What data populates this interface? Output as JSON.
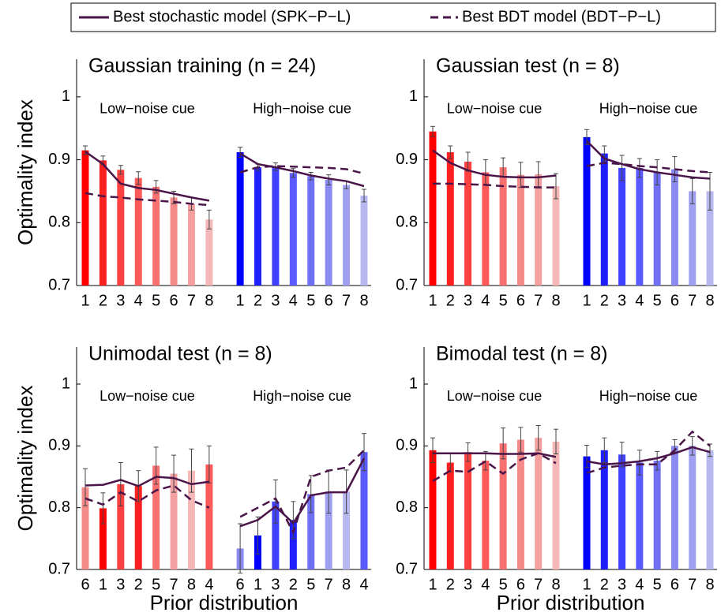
{
  "legend": {
    "position": "top",
    "items": [
      {
        "name": "Best stochastic model (SPK−P−L)",
        "color": "#4a1548",
        "dashed": false
      },
      {
        "name": "Best BDT model (BDT−P−L)",
        "color": "#4a1548",
        "dashed": true
      }
    ]
  },
  "chart_data": [
    {
      "type": "bar",
      "title": "Gaussian training (n = 24)",
      "ylabel": "Optimality index",
      "group_labels": [
        "Low−noise cue",
        "High−noise cue"
      ],
      "categories": [
        "1",
        "2",
        "3",
        "4",
        "5",
        "6",
        "7",
        "8",
        "1",
        "2",
        "3",
        "4",
        "5",
        "6",
        "7",
        "8"
      ],
      "values": [
        0.915,
        0.899,
        0.884,
        0.871,
        0.857,
        0.84,
        0.83,
        0.805,
        0.912,
        0.888,
        0.889,
        0.879,
        0.874,
        0.868,
        0.86,
        0.843
      ],
      "errors": [
        0.007,
        0.007,
        0.007,
        0.01,
        0.01,
        0.01,
        0.01,
        0.015,
        0.008,
        0.005,
        0.006,
        0.007,
        0.006,
        0.008,
        0.006,
        0.01
      ],
      "colors": [
        "#ff0000",
        "#ff2020",
        "#ff4040",
        "#ff5a5a",
        "#f87070",
        "#f58a8a",
        "#f5a0a0",
        "#f5b8b8",
        "#0000ff",
        "#2020ff",
        "#4040ff",
        "#5a5aff",
        "#7070f5",
        "#8a8af0",
        "#a0a0f0",
        "#b8b8f0"
      ],
      "series": [
        {
          "values": [
            0.913,
            0.893,
            0.862,
            0.855,
            0.852,
            0.846,
            0.84,
            0.835,
            0.91,
            0.893,
            0.888,
            0.882,
            0.875,
            0.87,
            0.866,
            0.858
          ]
        },
        {
          "values": [
            0.847,
            0.842,
            0.84,
            0.837,
            0.835,
            0.833,
            0.83,
            0.828,
            0.88,
            0.888,
            0.89,
            0.889,
            0.888,
            0.887,
            0.885,
            0.878
          ]
        }
      ],
      "ylim": [
        0.7,
        1.06
      ],
      "yticks": [
        0.7,
        0.8,
        0.9,
        1
      ]
    },
    {
      "type": "bar",
      "title": "Gaussian test (n = 8)",
      "group_labels": [
        "Low−noise cue",
        "High−noise cue"
      ],
      "categories": [
        "1",
        "2",
        "3",
        "4",
        "5",
        "6",
        "7",
        "8",
        "1",
        "2",
        "3",
        "4",
        "5",
        "6",
        "7",
        "8"
      ],
      "values": [
        0.945,
        0.912,
        0.897,
        0.88,
        0.888,
        0.876,
        0.877,
        0.858,
        0.936,
        0.91,
        0.887,
        0.887,
        0.88,
        0.885,
        0.85,
        0.85
      ],
      "errors": [
        0.008,
        0.01,
        0.015,
        0.02,
        0.015,
        0.02,
        0.02,
        0.02,
        0.012,
        0.012,
        0.02,
        0.015,
        0.02,
        0.02,
        0.02,
        0.03
      ],
      "colors": [
        "#ff0000",
        "#ff2020",
        "#ff4040",
        "#ff5a5a",
        "#f87070",
        "#f58a8a",
        "#f5a0a0",
        "#f5b8b8",
        "#0000ff",
        "#2020ff",
        "#4040ff",
        "#5a5aff",
        "#7070f5",
        "#8a8af0",
        "#a0a0f0",
        "#b8b8f0"
      ],
      "series": [
        {
          "values": [
            0.915,
            0.895,
            0.883,
            0.876,
            0.873,
            0.872,
            0.872,
            0.875,
            0.93,
            0.902,
            0.893,
            0.885,
            0.88,
            0.876,
            0.872,
            0.87
          ]
        },
        {
          "values": [
            0.862,
            0.862,
            0.861,
            0.86,
            0.858,
            0.857,
            0.856,
            0.856,
            0.89,
            0.895,
            0.893,
            0.89,
            0.888,
            0.885,
            0.882,
            0.88
          ]
        }
      ],
      "ylim": [
        0.7,
        1.06
      ],
      "yticks": [
        0.7,
        0.8,
        0.9,
        1
      ]
    },
    {
      "type": "bar",
      "title": "Unimodal test (n = 8)",
      "ylabel": "Optimality index",
      "xlabel": "Prior distribution",
      "group_labels": [
        "Low−noise cue",
        "High−noise cue"
      ],
      "categories": [
        "6",
        "1",
        "3",
        "2",
        "5",
        "7",
        "8",
        "4",
        "6",
        "1",
        "3",
        "2",
        "5",
        "7",
        "8",
        "4"
      ],
      "values": [
        0.833,
        0.799,
        0.838,
        0.835,
        0.868,
        0.855,
        0.86,
        0.87,
        0.734,
        0.755,
        0.81,
        0.78,
        0.822,
        0.826,
        0.826,
        0.89
      ],
      "errors": [
        0.03,
        0.025,
        0.035,
        0.025,
        0.03,
        0.03,
        0.035,
        0.03,
        0.04,
        0.03,
        0.035,
        0.03,
        0.03,
        0.035,
        0.035,
        0.03
      ],
      "colors": [
        "#f58a8a",
        "#ff0000",
        "#ff4040",
        "#ff2020",
        "#f87070",
        "#f5a0a0",
        "#f5b8b8",
        "#ff5a5a",
        "#8a8af0",
        "#0000ff",
        "#4040ff",
        "#2020ff",
        "#7070f5",
        "#a0a0f0",
        "#b8b8f0",
        "#5a5aff"
      ],
      "series": [
        {
          "values": [
            0.836,
            0.837,
            0.845,
            0.835,
            0.85,
            0.848,
            0.838,
            0.842,
            0.77,
            0.78,
            0.802,
            0.775,
            0.82,
            0.825,
            0.825,
            0.88
          ]
        },
        {
          "values": [
            0.815,
            0.805,
            0.825,
            0.81,
            0.828,
            0.836,
            0.812,
            0.8,
            0.785,
            0.8,
            0.815,
            0.76,
            0.85,
            0.86,
            0.865,
            0.893
          ]
        }
      ],
      "ylim": [
        0.7,
        1.06
      ],
      "yticks": [
        0.7,
        0.8,
        0.9,
        1
      ]
    },
    {
      "type": "bar",
      "title": "Bimodal test (n = 8)",
      "xlabel": "Prior distribution",
      "group_labels": [
        "Low−noise cue",
        "High−noise cue"
      ],
      "categories": [
        "1",
        "2",
        "3",
        "4",
        "5",
        "6",
        "7",
        "8",
        "1",
        "2",
        "3",
        "4",
        "5",
        "6",
        "7",
        "8"
      ],
      "values": [
        0.893,
        0.873,
        0.89,
        0.876,
        0.904,
        0.91,
        0.913,
        0.907,
        0.883,
        0.893,
        0.886,
        0.873,
        0.876,
        0.9,
        0.9,
        0.893
      ],
      "errors": [
        0.02,
        0.015,
        0.015,
        0.015,
        0.025,
        0.02,
        0.02,
        0.02,
        0.018,
        0.02,
        0.02,
        0.02,
        0.015,
        0.01,
        0.015,
        0.01
      ],
      "colors": [
        "#ff0000",
        "#ff2020",
        "#ff4040",
        "#ff5a5a",
        "#f87070",
        "#f58a8a",
        "#f5a0a0",
        "#f5b8b8",
        "#0000ff",
        "#2020ff",
        "#4040ff",
        "#5a5aff",
        "#7070f5",
        "#8a8af0",
        "#a0a0f0",
        "#b8b8f0"
      ],
      "series": [
        {
          "values": [
            0.888,
            0.888,
            0.888,
            0.888,
            0.887,
            0.887,
            0.888,
            0.882,
            0.875,
            0.87,
            0.872,
            0.875,
            0.88,
            0.888,
            0.898,
            0.89
          ]
        },
        {
          "values": [
            0.843,
            0.86,
            0.858,
            0.875,
            0.855,
            0.878,
            0.888,
            0.872,
            0.856,
            0.865,
            0.868,
            0.87,
            0.87,
            0.893,
            0.923,
            0.9
          ]
        }
      ],
      "ylim": [
        0.7,
        1.06
      ],
      "yticks": [
        0.7,
        0.8,
        0.9,
        1
      ]
    }
  ]
}
